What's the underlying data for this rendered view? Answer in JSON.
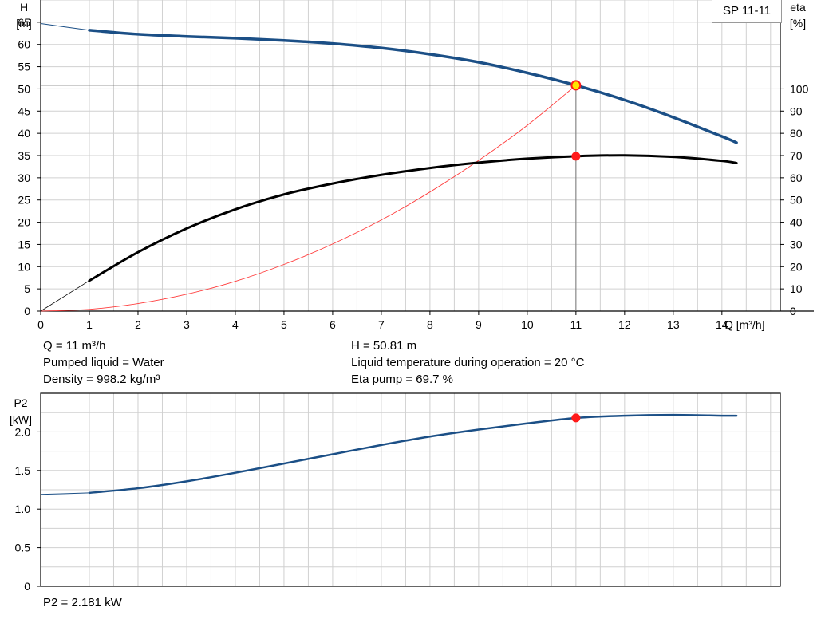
{
  "pump_name": "SP 11-11",
  "info": {
    "q": "Q = 11 m³/h",
    "liquid": "Pumped liquid = Water",
    "density": "Density = 998.2 kg/m³",
    "h": "H = 50.81 m",
    "temperature": "Liquid temperature during operation = 20 °C",
    "eta": "Eta pump = 69.7 %",
    "p2": "P2 = 2.181 kW"
  },
  "colors": {
    "head_curve": "#1b4f86",
    "efficiency_curve": "#000000",
    "system_curve": "#ff3b3b",
    "power_curve": "#1b4f86",
    "operating_point": "#ff1a1a",
    "duty_marker": "#ffe600",
    "grid": "#d0d0d0"
  },
  "chart_data": [
    {
      "type": "line",
      "name": "head-efficiency",
      "xlabel": "Q [m³/h]",
      "ylabel": "H\n[m]",
      "y2label": "eta\n[%]",
      "xlim": [
        0,
        15.2
      ],
      "ylim": [
        0,
        70
      ],
      "y2lim": [
        0,
        140
      ],
      "x_ticks": [
        0,
        1,
        2,
        3,
        4,
        5,
        6,
        7,
        8,
        9,
        10,
        11,
        12,
        13,
        14
      ],
      "y_ticks": [
        0,
        5,
        10,
        15,
        20,
        25,
        30,
        35,
        40,
        45,
        50,
        55,
        60,
        65
      ],
      "y2_ticks": [
        0,
        10,
        20,
        30,
        40,
        50,
        60,
        70,
        80,
        90,
        100
      ],
      "grid": true,
      "series": [
        {
          "key": "head",
          "axis": "left",
          "extrapolated_to": 1,
          "x": [
            0,
            1,
            2,
            3,
            4,
            5,
            6,
            7,
            8,
            9,
            10,
            11,
            12,
            13,
            14,
            14.3
          ],
          "y": [
            64.7,
            63.2,
            62.3,
            61.8,
            61.4,
            60.9,
            60.2,
            59.2,
            57.8,
            56.0,
            53.6,
            50.8,
            47.5,
            43.6,
            39.3,
            37.9
          ]
        },
        {
          "key": "efficiency",
          "axis": "right",
          "extrapolated_to": 1,
          "x": [
            0,
            1,
            2,
            3,
            4,
            5,
            6,
            7,
            8,
            9,
            10,
            11,
            12,
            13,
            14,
            14.3
          ],
          "y": [
            0,
            13.7,
            26.5,
            37.2,
            45.8,
            52.5,
            57.4,
            61.3,
            64.4,
            66.8,
            68.6,
            69.7,
            70.1,
            69.4,
            67.6,
            66.6
          ]
        },
        {
          "key": "system",
          "axis": "left",
          "x": [
            0,
            1,
            2,
            3,
            4,
            5,
            6,
            7,
            8,
            9,
            10,
            11
          ],
          "y": [
            0,
            0.4,
            1.7,
            3.8,
            6.7,
            10.5,
            15.1,
            20.5,
            26.8,
            33.9,
            41.8,
            50.8
          ]
        }
      ],
      "operating_point": {
        "q": 11,
        "h": 50.81,
        "eta": 69.7
      }
    },
    {
      "type": "line",
      "name": "power",
      "ylabel": "P2\n[kW]",
      "xlim": [
        0,
        15.2
      ],
      "ylim": [
        0,
        2.5
      ],
      "y_ticks": [
        0,
        0.5,
        1.0,
        1.5,
        2.0
      ],
      "y_tick_labels": [
        "0",
        "0.5",
        "1.0",
        "1.5",
        "2.0"
      ],
      "grid": true,
      "series": [
        {
          "key": "p2",
          "extrapolated_to": 1,
          "x": [
            0,
            1,
            2,
            3,
            4,
            5,
            6,
            7,
            8,
            9,
            10,
            11,
            12,
            13,
            14,
            14.3
          ],
          "y": [
            1.19,
            1.21,
            1.27,
            1.36,
            1.47,
            1.59,
            1.71,
            1.83,
            1.94,
            2.03,
            2.11,
            2.18,
            2.21,
            2.22,
            2.21,
            2.21
          ]
        }
      ],
      "operating_point": {
        "q": 11,
        "p2": 2.181
      }
    }
  ]
}
